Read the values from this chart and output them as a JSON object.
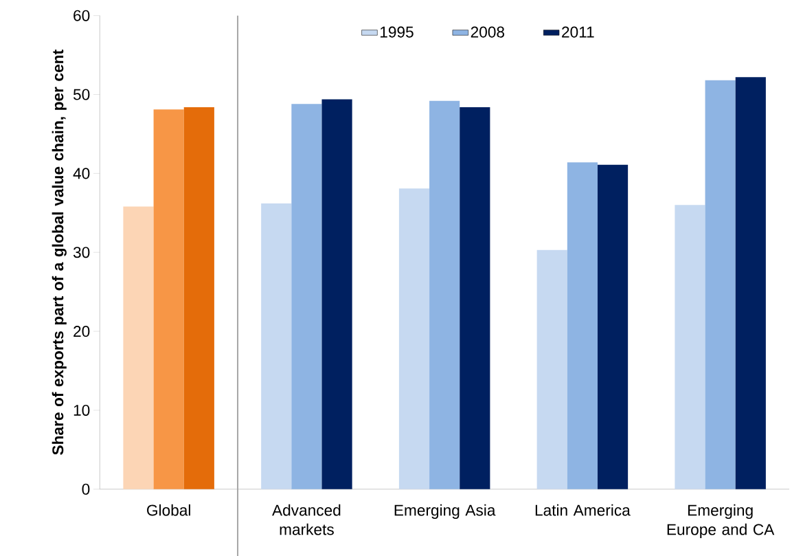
{
  "chart_data": {
    "type": "bar",
    "ylabel": "Share of exports part of a global value chain, per cent",
    "categories": [
      "Global",
      "Advanced markets",
      "Emerging Asia",
      "Latin America",
      "Emerging Europe and CA"
    ],
    "series": [
      {
        "name": "1995",
        "color": "#c6d9f1",
        "colors": [
          "#fcd5b5",
          "#c6d9f1",
          "#c6d9f1",
          "#c6d9f1",
          "#c6d9f1"
        ],
        "values": [
          35.8,
          36.2,
          38.1,
          30.3,
          36.0
        ]
      },
      {
        "name": "2008",
        "color": "#8eb4e3",
        "colors": [
          "#f79646",
          "#8eb4e3",
          "#8eb4e3",
          "#8eb4e3",
          "#8eb4e3"
        ],
        "values": [
          48.1,
          48.8,
          49.2,
          41.4,
          51.8
        ]
      },
      {
        "name": "2011",
        "color": "#002060",
        "colors": [
          "#e46c0a",
          "#002060",
          "#002060",
          "#002060",
          "#002060"
        ],
        "values": [
          48.4,
          49.4,
          48.4,
          41.1,
          52.2
        ]
      }
    ],
    "ylim": [
      0,
      60
    ],
    "yticks": [
      0,
      10,
      20,
      30,
      40,
      50,
      60
    ],
    "grid": false,
    "legend": "top"
  }
}
